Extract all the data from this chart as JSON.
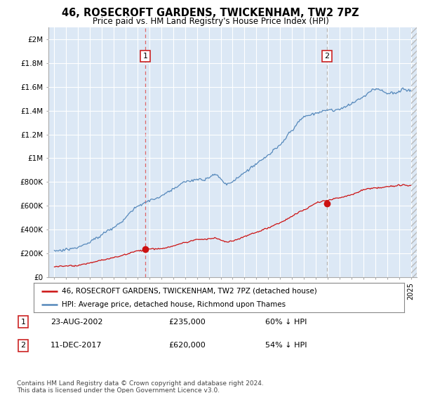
{
  "title": "46, ROSECROFT GARDENS, TWICKENHAM, TW2 7PZ",
  "subtitle": "Price paid vs. HM Land Registry's House Price Index (HPI)",
  "background_color": "#ffffff",
  "plot_background": "#dce8f5",
  "grid_color": "#ffffff",
  "hpi_color": "#5588bb",
  "price_color": "#cc1111",
  "marker_color": "#cc1111",
  "vline1_color": "#dd6666",
  "vline2_color": "#aaaaaa",
  "ylabel_ticks": [
    "£0",
    "£200K",
    "£400K",
    "£600K",
    "£800K",
    "£1M",
    "£1.2M",
    "£1.4M",
    "£1.6M",
    "£1.8M",
    "£2M"
  ],
  "ytick_values": [
    0,
    200000,
    400000,
    600000,
    800000,
    1000000,
    1200000,
    1400000,
    1600000,
    1800000,
    2000000
  ],
  "ylim": [
    0,
    2100000
  ],
  "xlim_start": 1994.5,
  "xlim_end": 2025.5,
  "sale1_year": 2002.646,
  "sale1_price": 235000,
  "sale2_year": 2017.944,
  "sale2_price": 620000,
  "legend_line1": "46, ROSECROFT GARDENS, TWICKENHAM, TW2 7PZ (detached house)",
  "legend_line2": "HPI: Average price, detached house, Richmond upon Thames",
  "note1_date": "23-AUG-2002",
  "note1_price": "£235,000",
  "note1_pct": "60% ↓ HPI",
  "note2_date": "11-DEC-2017",
  "note2_price": "£620,000",
  "note2_pct": "54% ↓ HPI",
  "footer": "Contains HM Land Registry data © Crown copyright and database right 2024.\nThis data is licensed under the Open Government Licence v3.0."
}
